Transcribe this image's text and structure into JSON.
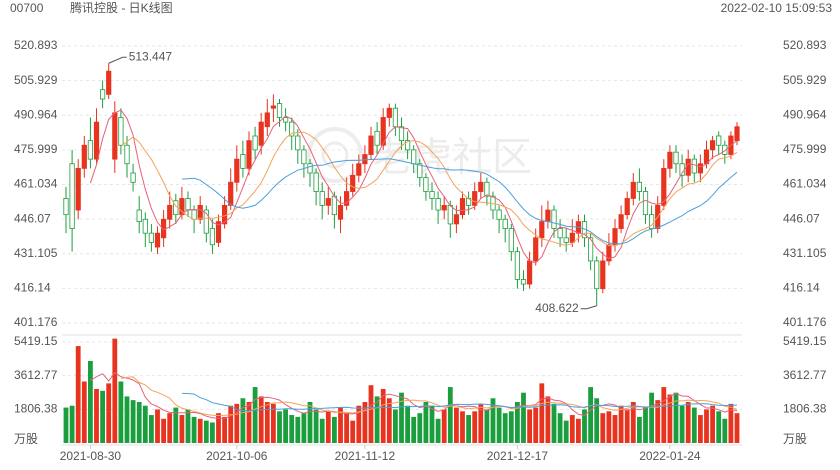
{
  "chart_data": {
    "type": "candlestick",
    "code": "00700",
    "title": "腾讯控股 - 日K线图",
    "timestamp": "2022-02-10 15:09:53",
    "watermark": "老虎社区",
    "categories": [
      null,
      null,
      null,
      null,
      "2021-08-30",
      null,
      null,
      null,
      null,
      null,
      null,
      null,
      null,
      null,
      null,
      null,
      null,
      null,
      null,
      null,
      null,
      null,
      null,
      null,
      null,
      null,
      null,
      null,
      "2021-10-06",
      null,
      null,
      null,
      null,
      null,
      null,
      null,
      null,
      null,
      null,
      null,
      null,
      null,
      null,
      null,
      null,
      null,
      null,
      null,
      null,
      "2021-11-12",
      null,
      null,
      null,
      null,
      null,
      null,
      null,
      null,
      null,
      null,
      null,
      null,
      null,
      null,
      null,
      null,
      null,
      null,
      null,
      null,
      null,
      null,
      null,
      null,
      "2021-12-17",
      null,
      null,
      null,
      null,
      null,
      null,
      null,
      null,
      null,
      null,
      null,
      null,
      null,
      null,
      null,
      null,
      null,
      null,
      null,
      null,
      null,
      null,
      null,
      null,
      "2022-01-24",
      null,
      null,
      null,
      null,
      null,
      null,
      null,
      null,
      null,
      null,
      null
    ],
    "open": [
      455,
      470,
      450,
      468,
      480,
      472,
      502,
      500,
      472,
      490,
      478,
      466,
      450,
      446,
      440,
      434,
      438,
      446,
      454,
      448,
      455,
      450,
      446,
      450,
      442,
      436,
      444,
      452,
      462,
      474,
      468,
      482,
      478,
      486,
      494,
      496,
      490,
      488,
      482,
      476,
      470,
      466,
      458,
      452,
      456,
      446,
      452,
      458,
      465,
      470,
      474,
      484,
      478,
      490,
      494,
      486,
      480,
      476,
      470,
      464,
      458,
      455,
      450,
      452,
      444,
      448,
      455,
      452,
      458,
      462,
      456,
      450,
      446,
      442,
      432,
      420,
      418,
      428,
      438,
      445,
      450,
      442,
      438,
      436,
      440,
      445,
      438,
      428,
      416,
      428,
      435,
      442,
      448,
      455,
      462,
      458,
      448,
      442,
      452,
      468,
      475,
      470,
      465,
      472,
      466,
      470,
      476,
      482,
      478,
      474,
      480
    ],
    "high": [
      460,
      476,
      472,
      482,
      490,
      494,
      506,
      513.447,
      497,
      494,
      482,
      470,
      456,
      449,
      444,
      443,
      450,
      458,
      457,
      460,
      458,
      452,
      456,
      452,
      446,
      448,
      456,
      468,
      478,
      480,
      484,
      486,
      492,
      498,
      500,
      498,
      494,
      490,
      485,
      478,
      472,
      468,
      462,
      460,
      458,
      456,
      464,
      470,
      474,
      478,
      486,
      488,
      494,
      496,
      496,
      490,
      484,
      478,
      472,
      466,
      462,
      458,
      456,
      454,
      452,
      458,
      458,
      462,
      466,
      464,
      458,
      452,
      448,
      444,
      434,
      424,
      432,
      442,
      452,
      454,
      452,
      446,
      442,
      446,
      448,
      448,
      440,
      430,
      432,
      440,
      446,
      452,
      458,
      466,
      468,
      460,
      452,
      456,
      472,
      478,
      478,
      474,
      476,
      474,
      474,
      480,
      482,
      484,
      480,
      484,
      488
    ],
    "low": [
      440,
      432,
      446,
      464,
      468,
      470,
      494,
      498,
      466,
      474,
      464,
      458,
      440,
      434,
      432,
      431,
      434,
      442,
      444,
      446,
      447,
      440,
      444,
      436,
      431,
      434,
      442,
      450,
      458,
      464,
      465,
      472,
      474,
      482,
      488,
      486,
      484,
      476,
      470,
      464,
      460,
      452,
      446,
      448,
      442,
      440,
      450,
      456,
      462,
      466,
      472,
      474,
      476,
      486,
      482,
      476,
      472,
      466,
      460,
      454,
      450,
      444,
      446,
      438,
      440,
      446,
      448,
      450,
      455,
      452,
      446,
      440,
      436,
      428,
      416,
      415,
      416,
      426,
      434,
      442,
      438,
      434,
      432,
      434,
      436,
      434,
      424,
      408.622,
      414,
      426,
      432,
      440,
      446,
      452,
      454,
      444,
      438,
      440,
      450,
      464,
      466,
      460,
      462,
      462,
      462,
      468,
      472,
      474,
      470,
      472,
      478
    ],
    "close": [
      448,
      442,
      468,
      478,
      472,
      488,
      498,
      510,
      492,
      478,
      470,
      462,
      445,
      440,
      436,
      440,
      446,
      452,
      448,
      455,
      450,
      446,
      452,
      440,
      435,
      445,
      452,
      462,
      472,
      468,
      480,
      476,
      488,
      492,
      495,
      490,
      488,
      482,
      476,
      470,
      466,
      458,
      452,
      455,
      448,
      452,
      458,
      465,
      470,
      474,
      482,
      478,
      490,
      494,
      486,
      480,
      476,
      470,
      464,
      458,
      455,
      450,
      452,
      444,
      448,
      455,
      452,
      458,
      462,
      456,
      450,
      446,
      442,
      432,
      420,
      418,
      428,
      438,
      445,
      450,
      442,
      438,
      436,
      440,
      445,
      438,
      428,
      416,
      428,
      435,
      442,
      448,
      455,
      462,
      458,
      448,
      442,
      452,
      468,
      475,
      470,
      465,
      472,
      466,
      470,
      476,
      480,
      478,
      474,
      482,
      486
    ],
    "volume": [
      1900,
      2000,
      5200,
      3300,
      4400,
      2900,
      2800,
      3200,
      5600,
      3300,
      2500,
      2300,
      2200,
      2000,
      1500,
      1800,
      1300,
      1600,
      1900,
      1500,
      1800,
      1400,
      1300,
      1200,
      1100,
      1600,
      1400,
      2000,
      2100,
      2400,
      2200,
      3000,
      2500,
      2200,
      2100,
      1700,
      1800,
      1500,
      1400,
      1600,
      2200,
      1800,
      1300,
      1700,
      1400,
      1900,
      1600,
      1200,
      2000,
      2200,
      3100,
      2500,
      2900,
      2400,
      1800,
      2700,
      2000,
      1400,
      1600,
      2200,
      2000,
      1300,
      1800,
      3000,
      1900,
      1700,
      1500,
      1700,
      2100,
      1800,
      2400,
      1900,
      1600,
      1700,
      2200,
      2700,
      1800,
      1900,
      3200,
      2500,
      2100,
      1600,
      1200,
      1500,
      1300,
      1800,
      3000,
      2400,
      1600,
      1700,
      1500,
      2000,
      1800,
      2200,
      1400,
      1900,
      2700,
      2300,
      3000,
      2600,
      2700,
      2000,
      2200,
      1900,
      1500,
      1800,
      2000,
      1700,
      1300,
      2100,
      1600
    ],
    "ylim": [
      401.176,
      520.893
    ],
    "yticks": [
      401.176,
      416.14,
      431.105,
      446.07,
      461.034,
      475.999,
      490.964,
      505.929,
      520.893
    ],
    "volume_ylim": [
      0,
      5419.15
    ],
    "volume_yticks": [
      1806.38,
      3612.77,
      5419.15
    ],
    "volume_unit": "万股",
    "up_color": "#e8331f",
    "down_color": "#1b9e3e",
    "grid": true,
    "moving_averages": [
      {
        "period": 5,
        "color": "#e8607a"
      },
      {
        "period": 10,
        "color": "#f3a35a"
      },
      {
        "period": 20,
        "color": "#4aa0dc"
      }
    ]
  }
}
